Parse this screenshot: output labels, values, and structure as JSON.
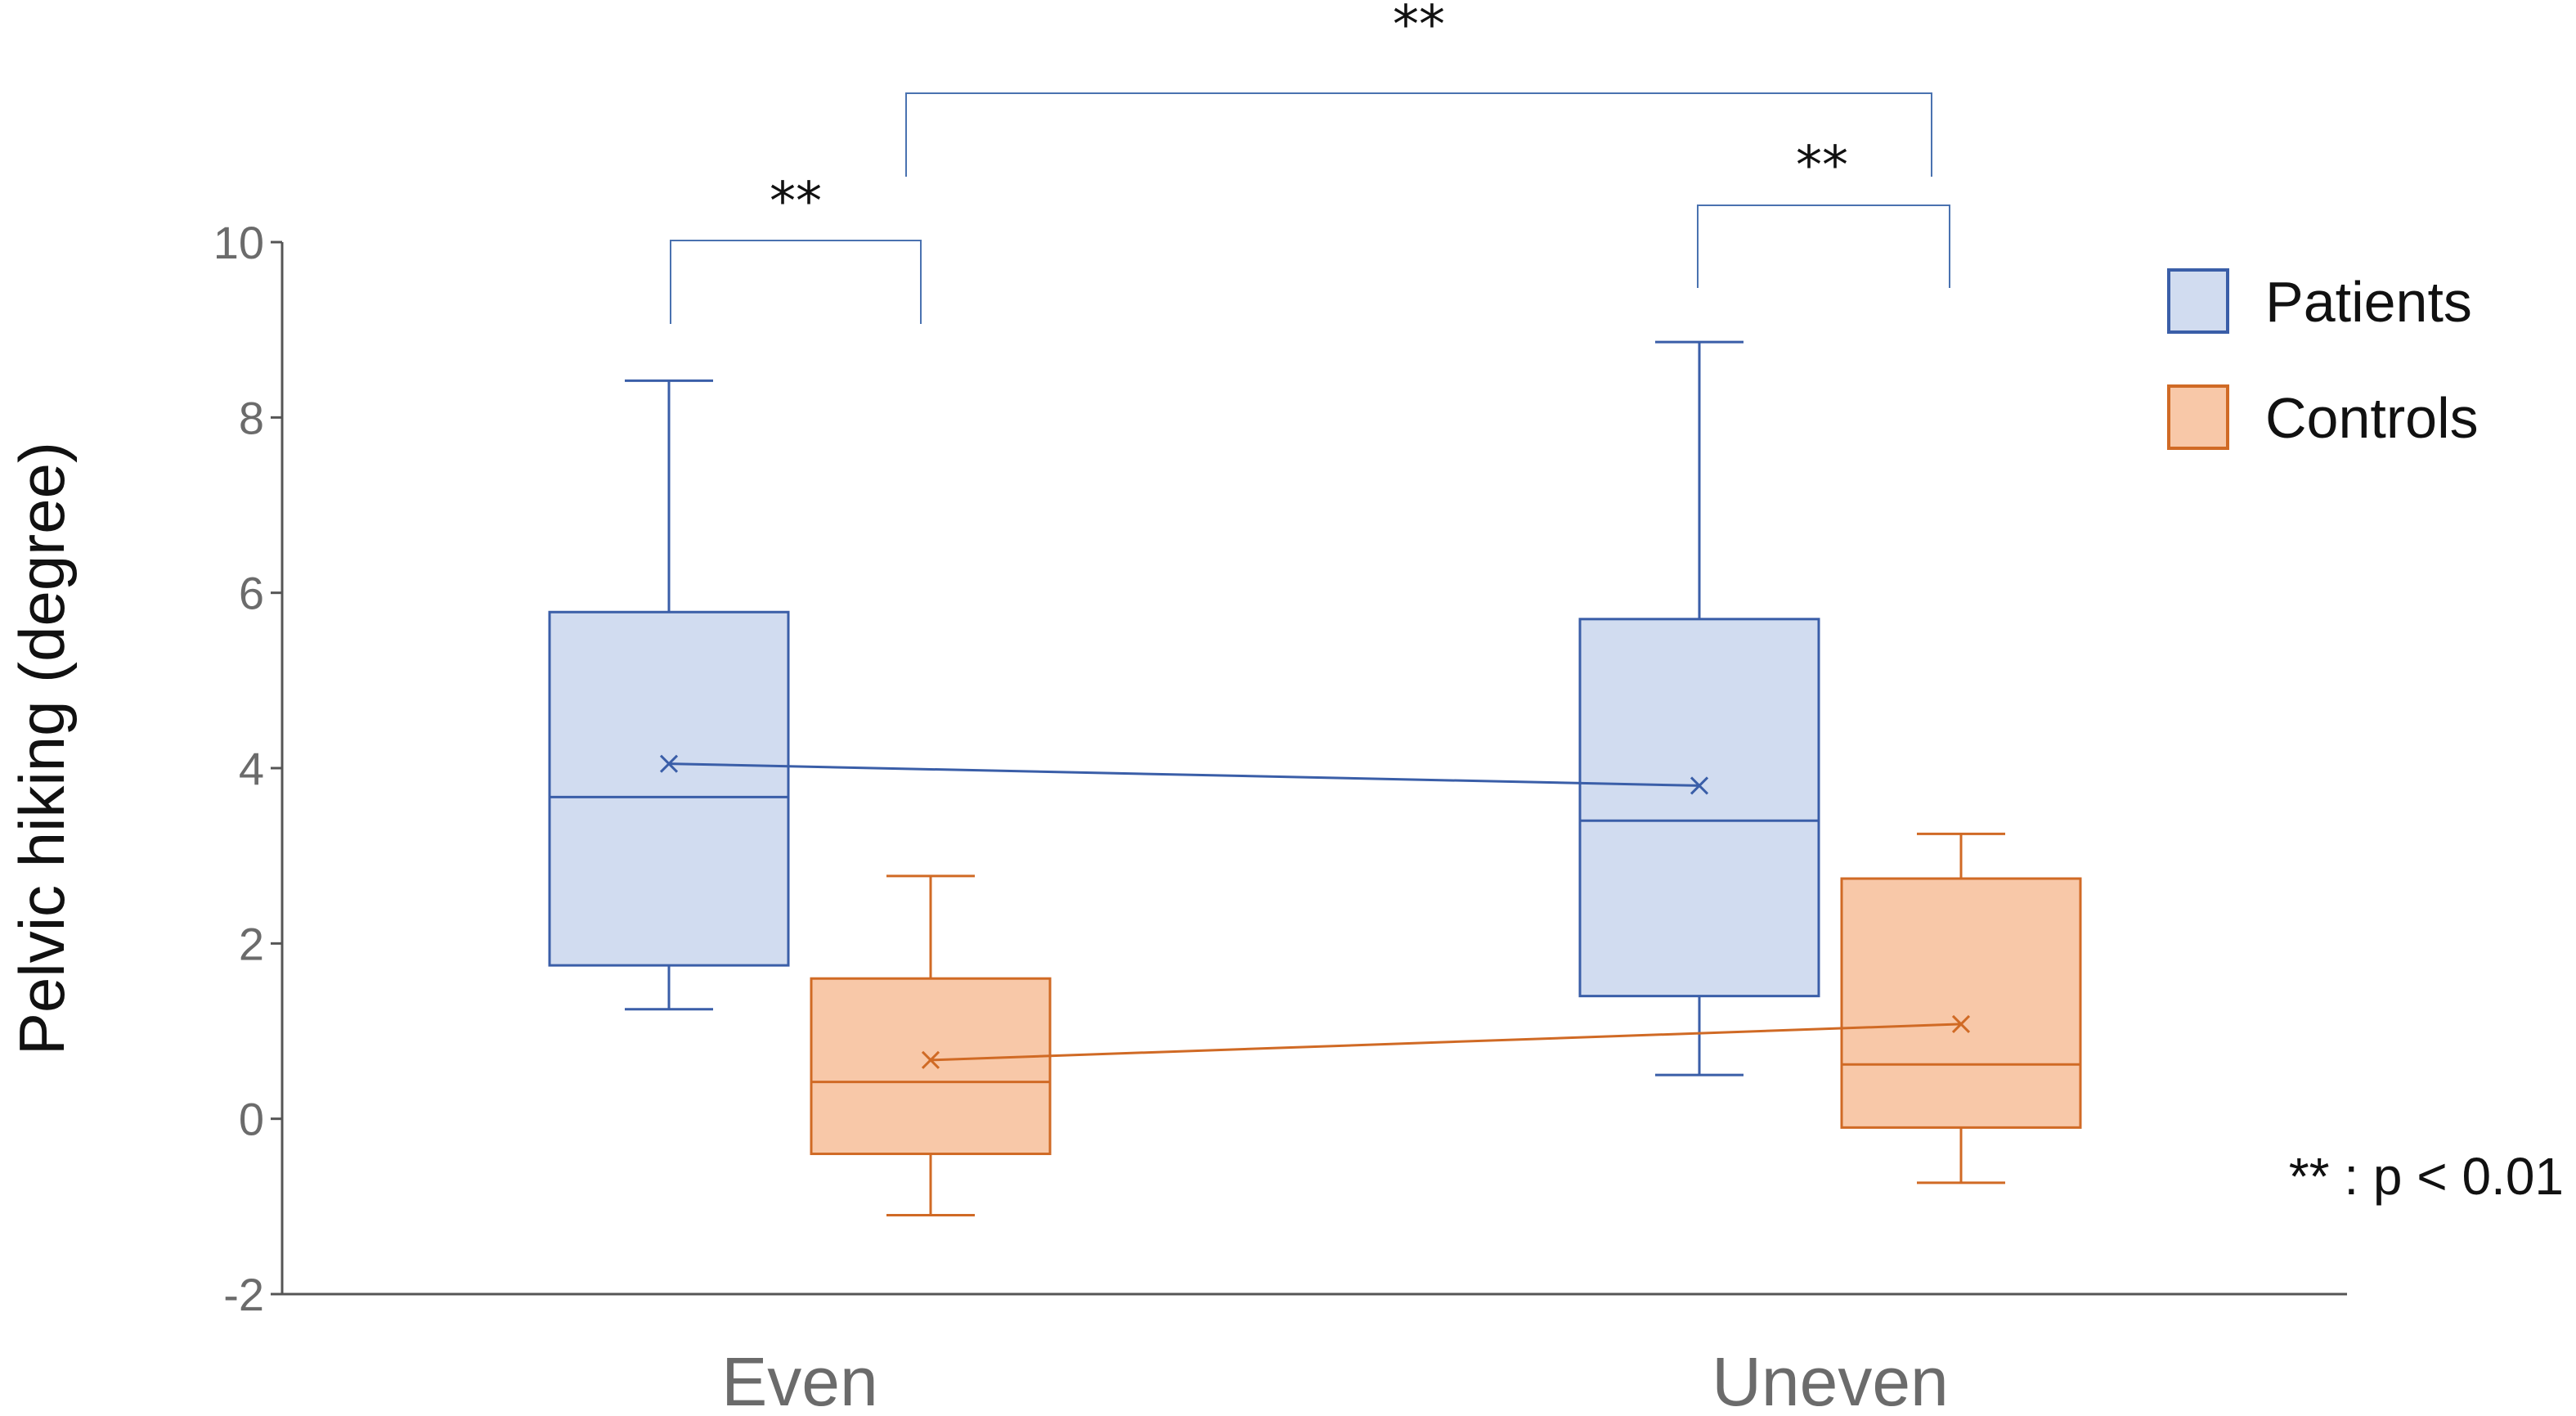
{
  "chart_data": {
    "type": "box",
    "ylabel": "Pelvic hiking (degree)",
    "xlabel": "",
    "ylim": [
      -2,
      10
    ],
    "yticks": [
      -2,
      0,
      2,
      4,
      6,
      8,
      10
    ],
    "grid": false,
    "legend_position": "top-right",
    "categories": [
      "Even",
      "Uneven"
    ],
    "series": [
      {
        "name": "Patients",
        "fill": "#d1dcf0",
        "stroke": "#3a5ea8",
        "boxes": [
          {
            "category": "Even",
            "whisker_low": 1.25,
            "q1": 1.75,
            "median": 3.67,
            "q3": 5.78,
            "whisker_high": 8.42,
            "mean": 4.05
          },
          {
            "category": "Uneven",
            "whisker_low": 0.5,
            "q1": 1.4,
            "median": 3.4,
            "q3": 5.7,
            "whisker_high": 8.86,
            "mean": 3.8
          }
        ]
      },
      {
        "name": "Controls",
        "fill": "#f8c8a8",
        "stroke": "#d06a25",
        "boxes": [
          {
            "category": "Even",
            "whisker_low": -1.1,
            "q1": -0.4,
            "median": 0.42,
            "q3": 1.6,
            "whisker_high": 2.77,
            "mean": 0.67
          },
          {
            "category": "Uneven",
            "whisker_low": -0.73,
            "q1": -0.1,
            "median": 0.62,
            "q3": 2.74,
            "whisker_high": 3.25,
            "mean": 1.08
          }
        ]
      }
    ],
    "significance": [
      {
        "label": "**",
        "between": "Even: Patients vs Controls"
      },
      {
        "label": "**",
        "between": "Uneven: Patients vs Controls"
      },
      {
        "label": "**",
        "between": "Even vs Uneven"
      }
    ],
    "note": "** : p < 0.01"
  }
}
